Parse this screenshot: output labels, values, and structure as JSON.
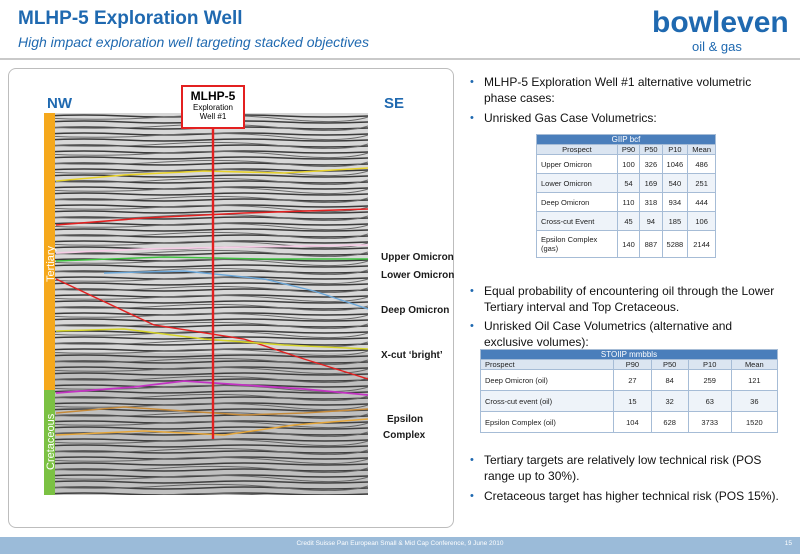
{
  "header": {
    "title": "MLHP-5 Exploration Well",
    "subtitle": "High impact exploration well targeting stacked objectives"
  },
  "logo": {
    "word": "bowleven",
    "sub": "oil & gas"
  },
  "section": {
    "nw": "NW",
    "se": "SE",
    "well": {
      "name": "MLHP-5",
      "line1": "Exploration",
      "line2": "Well #1"
    },
    "eras": {
      "tertiary": "Tertiary",
      "cretaceous": "Cretaceous"
    },
    "horizons": [
      "Upper Omicron",
      "Lower Omicron",
      "Deep Omicron",
      "X-cut ‘bright’",
      "Epsilon",
      "Complex"
    ],
    "colors": {
      "tertiary": "#f5a81c",
      "cretaceous": "#7bc143",
      "well": "#e32020"
    }
  },
  "bullets": [
    "MLHP-5 Exploration Well #1 alternative volumetric phase cases:",
    "Unrisked Gas Case Volumetrics:",
    "Equal probability of encountering oil through the Lower Tertiary interval and Top Cretaceous.",
    "Unrisked Oil Case Volumetrics (alternative and exclusive volumes):",
    "Tertiary targets are relatively low technical risk (POS range up to 30%).",
    "Cretaceous target has higher technical risk (POS 15%)."
  ],
  "gas_table": {
    "caption": "GIIP bcf",
    "headers": [
      "Prospect",
      "P90",
      "P50",
      "P10",
      "Mean"
    ],
    "rows": [
      [
        "Upper Omicron",
        "100",
        "326",
        "1046",
        "486"
      ],
      [
        "Lower Omicron",
        "54",
        "169",
        "540",
        "251"
      ],
      [
        "Deep Omicron",
        "110",
        "318",
        "934",
        "444"
      ],
      [
        "Cross-cut Event",
        "45",
        "94",
        "185",
        "106"
      ],
      [
        "Epsilon Complex (gas)",
        "140",
        "887",
        "5288",
        "2144"
      ]
    ]
  },
  "oil_table": {
    "caption": "STOIIP mmbbls",
    "headers": [
      "Prospect",
      "P90",
      "P50",
      "P10",
      "Mean"
    ],
    "rows": [
      [
        "Deep Omicron (oil)",
        "27",
        "84",
        "259",
        "121"
      ],
      [
        "Cross-cut event (oil)",
        "15",
        "32",
        "63",
        "36"
      ],
      [
        "Epsilon Complex (oil)",
        "104",
        "628",
        "3733",
        "1520"
      ]
    ]
  },
  "footer": {
    "text": "Credit Suisse Pan European Small & Mid Cap Conference, 9 June 2010",
    "page": "15"
  }
}
